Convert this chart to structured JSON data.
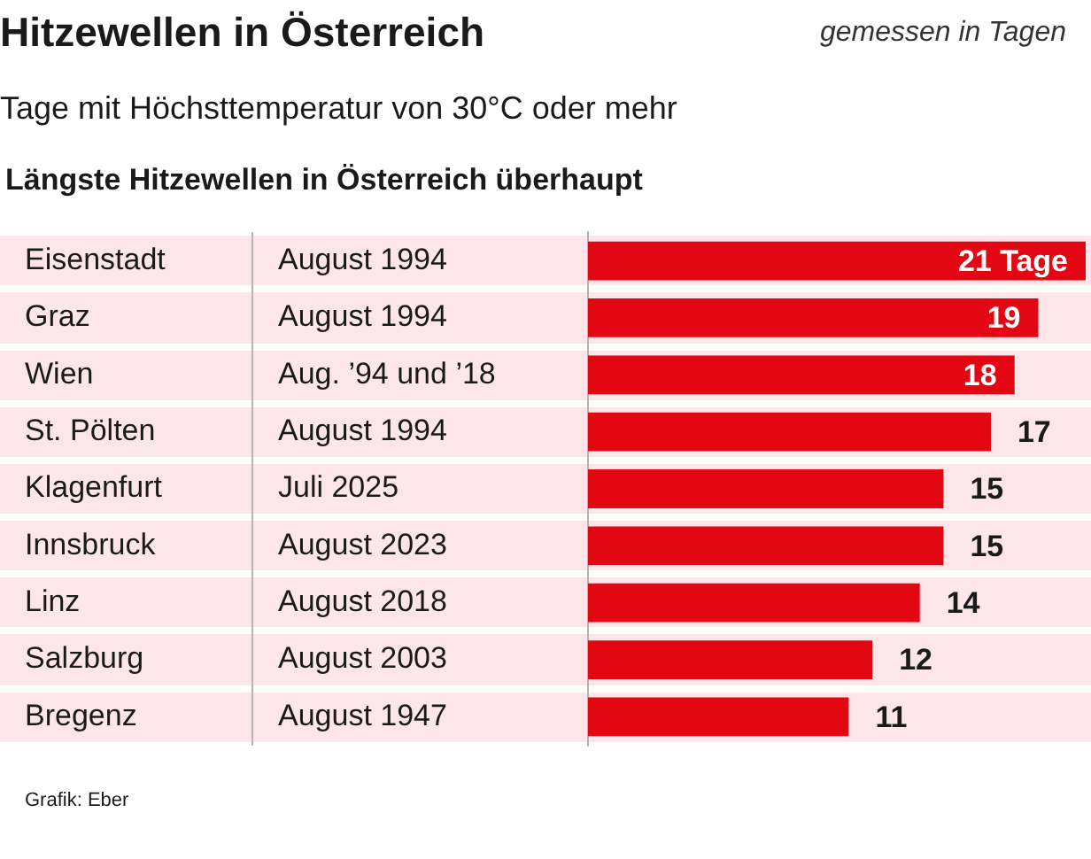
{
  "chart_data": {
    "type": "bar",
    "orientation": "horizontal",
    "title": "Hitzewellen in Österreich",
    "subtitle": "Tage mit Höchsttemperatur von 30°C oder mehr",
    "categories": [
      "Eisenstadt",
      "Graz",
      "Wien",
      "St. Pölten",
      "Klagenfurt",
      "Innsbruck",
      "Linz",
      "Salzburg",
      "Bregenz"
    ],
    "values": [
      21,
      19,
      18,
      17,
      15,
      15,
      14,
      12,
      11
    ],
    "color": "#e30613",
    "value_labels": [
      "21 Tage",
      "19",
      "18",
      "17",
      "15",
      "15",
      "14",
      "12",
      "11"
    ],
    "xlim": [
      0,
      21
    ],
    "tick_labels": "y",
    "annotations": [
      "gemessen in Tagen",
      "Längste Hitzewellen in Österreich überhaupt",
      "August 1994",
      "August 1994",
      "Aug. ’94 und ’18",
      "August 1994",
      "Juli 2025",
      "August 2023",
      "August 2018",
      "August 2003",
      "August 1947",
      "Grafik: Eber"
    ]
  }
}
